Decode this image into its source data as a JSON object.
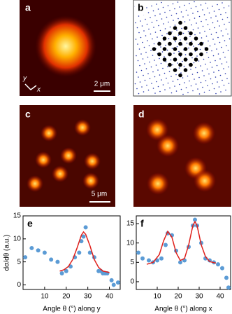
{
  "panels": {
    "a": {
      "label": "a",
      "scale_bar": "2 μm",
      "axis_y": "y",
      "axis_x": "x"
    },
    "b": {
      "label": "b"
    },
    "c": {
      "label": "c",
      "scale_bar": "5 μm"
    },
    "d": {
      "label": "d"
    }
  },
  "chart_data": [
    {
      "type": "scatter",
      "label": "e",
      "y_label": "dσ/dθ (a.u.)",
      "x_label": "Angle θ (°) along y",
      "xlim": [
        0,
        45
      ],
      "xticks": [
        10,
        20,
        30,
        40
      ],
      "ylim": [
        -1,
        15
      ],
      "yticks": [
        0,
        5,
        10,
        15
      ],
      "series": [
        {
          "color": "#5b9bd5",
          "x": [
            1,
            4,
            7,
            10,
            13,
            16,
            18,
            20,
            22,
            24,
            26,
            27,
            28,
            29,
            31,
            33,
            35,
            36,
            37,
            38,
            39,
            41,
            42,
            44
          ],
          "y": [
            6,
            8,
            7.5,
            7,
            5.5,
            5,
            2.5,
            3,
            4,
            6,
            7,
            9.5,
            10.5,
            12.5,
            7,
            6,
            3,
            3,
            2.5,
            2.5,
            2.5,
            1,
            0,
            0.5
          ]
        },
        {
          "color": "#e0201b",
          "line": true,
          "x": [
            17,
            19,
            21,
            23,
            25,
            27,
            28,
            29,
            31,
            33,
            35,
            37,
            40
          ],
          "y": [
            3,
            3.3,
            4,
            5.5,
            8,
            10.8,
            11.5,
            11,
            8.5,
            5.5,
            3.8,
            3,
            2.7
          ]
        }
      ]
    },
    {
      "type": "scatter",
      "label": "f",
      "x_label": "Angle θ (°) along x",
      "xlim": [
        0,
        45
      ],
      "xticks": [
        10,
        20,
        30,
        40
      ],
      "ylim": [
        -2,
        17
      ],
      "yticks": [
        0,
        5,
        10,
        15
      ],
      "series": [
        {
          "color": "#5b9bd5",
          "x": [
            1,
            3,
            6,
            8,
            10,
            12,
            14,
            15,
            17,
            19,
            21,
            23,
            25,
            27,
            28,
            29,
            31,
            33,
            35,
            37,
            39,
            41,
            43,
            44
          ],
          "y": [
            7.5,
            6,
            5.5,
            5,
            5.5,
            6,
            9.5,
            12.5,
            12,
            8,
            5,
            5.5,
            9,
            14.5,
            16,
            14.5,
            10,
            6,
            5.5,
            5,
            4.5,
            3.5,
            1,
            -1.5
          ]
        },
        {
          "color": "#e0201b",
          "line": true,
          "x": [
            5,
            8,
            11,
            13,
            15,
            17,
            19,
            21,
            23,
            25,
            27,
            28,
            29,
            31,
            33,
            35,
            38
          ],
          "y": [
            4.5,
            5,
            7,
            10.5,
            13,
            11.5,
            7.5,
            5.5,
            6,
            9.5,
            14.5,
            15.5,
            14.5,
            9.5,
            6.5,
            5.2,
            4.8
          ]
        }
      ]
    }
  ]
}
